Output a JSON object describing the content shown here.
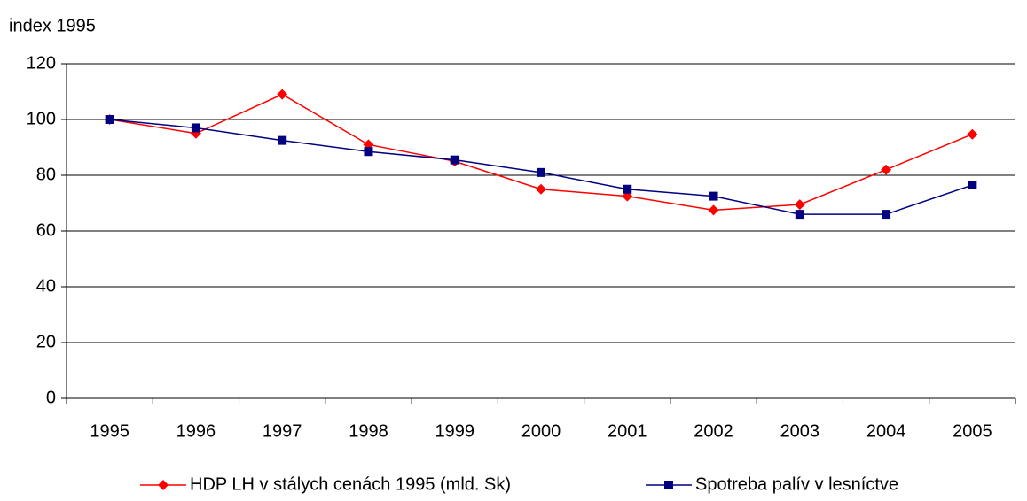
{
  "chart_data": {
    "type": "line",
    "y_axis_label": "index 1995",
    "categories": [
      "1995",
      "1996",
      "1997",
      "1998",
      "1999",
      "2000",
      "2001",
      "2002",
      "2003",
      "2004",
      "2005"
    ],
    "series": [
      {
        "name": "HDP LH v stálych cenách 1995 (mld. Sk)",
        "color": "#ff0000",
        "marker": "diamond",
        "values": [
          100,
          95,
          109,
          91,
          85,
          75,
          72.5,
          67.5,
          69.5,
          82,
          94.7
        ]
      },
      {
        "name": "Spotreba palív v lesníctve",
        "color": "#000080",
        "marker": "square",
        "values": [
          100,
          97,
          92.5,
          88.5,
          85.5,
          81,
          75,
          72.5,
          66,
          66,
          76.5
        ]
      }
    ],
    "ylim": [
      0,
      120
    ],
    "yticks": [
      0,
      20,
      40,
      60,
      80,
      100,
      120
    ],
    "grid": true,
    "legend": "bottom"
  }
}
